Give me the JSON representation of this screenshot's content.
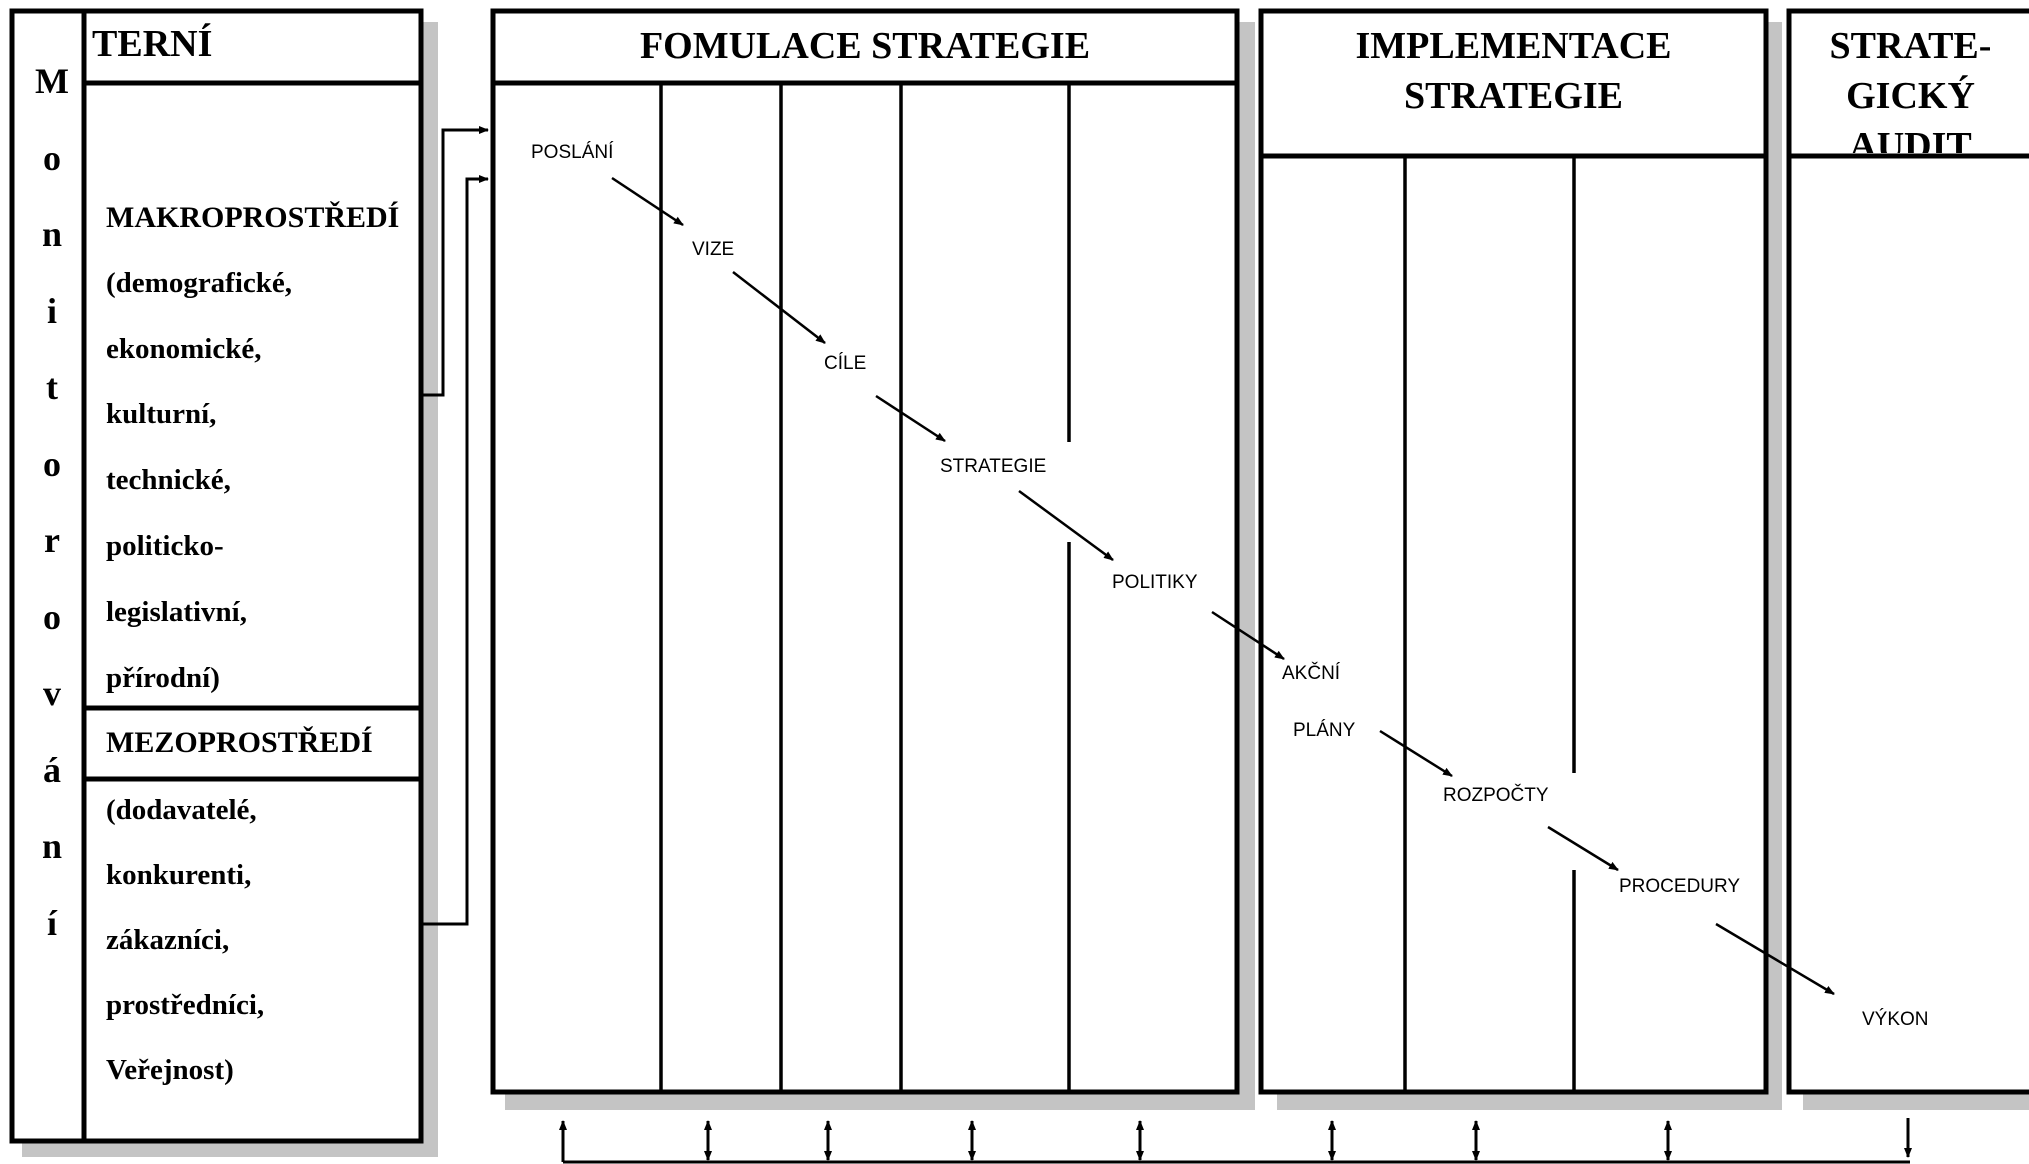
{
  "left_panel": {
    "vertical_label_letters": [
      "M",
      "o",
      "n",
      "i",
      "t",
      "o",
      "r",
      "o",
      "v",
      "á",
      "n",
      "í"
    ],
    "header": "TERNÍ",
    "macro": {
      "title": "MAKROPROSTŘEDÍ",
      "items": [
        "(demografické,",
        "ekonomické,",
        "kulturní,",
        "technické,",
        "politicko-",
        "legislativní,",
        "přírodní)"
      ]
    },
    "meso": {
      "title": "MEZOPROSTŘEDÍ",
      "items": [
        "(dodavatelé,",
        "konkurenti,",
        "zákazníci,",
        "prostředníci,",
        "Veřejnost)"
      ]
    }
  },
  "formulation": {
    "title": "FOMULACE STRATEGIE",
    "steps": [
      "POSLÁNÍ",
      "VIZE",
      "CÍLE",
      "STRATEGIE",
      "POLITIKY"
    ]
  },
  "implementation": {
    "title_lines": [
      "IMPLEMENTACE",
      "STRATEGIE"
    ],
    "steps": [
      "AKČNÍ",
      "PLÁNY",
      "ROZPOČTY",
      "PROCEDURY"
    ]
  },
  "audit": {
    "title_lines": [
      "STRATE-",
      "GICKÝ",
      "AUDIT"
    ],
    "steps": [
      "VÝKON"
    ]
  },
  "colors": {
    "line": "#000000",
    "shadow": "#c4c4c4",
    "background": "#ffffff"
  }
}
